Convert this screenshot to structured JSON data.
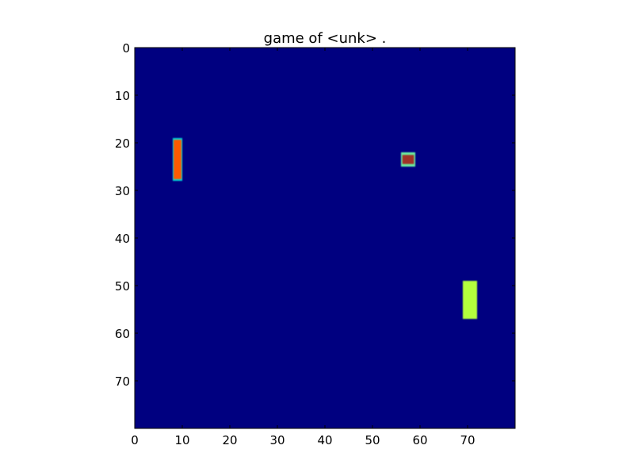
{
  "title": "game of <unk> .",
  "frame": {
    "rows": 80,
    "cols": 80,
    "background_color": "#000080"
  },
  "axes": {
    "x_ticks": [
      0,
      10,
      20,
      30,
      40,
      50,
      60,
      70
    ],
    "y_ticks": [
      0,
      10,
      20,
      30,
      40,
      50,
      60,
      70
    ],
    "x_tick_labels": [
      "0",
      "10",
      "20",
      "30",
      "40",
      "50",
      "60",
      "70"
    ],
    "y_tick_labels": [
      "0",
      "10",
      "20",
      "30",
      "40",
      "50",
      "60",
      "70"
    ]
  },
  "objects": [
    {
      "name": "left-paddle",
      "col_start": 8,
      "col_end": 10,
      "row_start": 19,
      "row_end": 28,
      "fill": "#ff5a00",
      "edge": "#00d8d8"
    },
    {
      "name": "ball",
      "col_start": 56,
      "col_end": 59,
      "row_start": 22,
      "row_end": 25,
      "fill": "#a03028",
      "edge": "#6cf0a0"
    },
    {
      "name": "right-paddle",
      "col_start": 69,
      "col_end": 72,
      "row_start": 49,
      "row_end": 57,
      "fill": "#b4ff3c",
      "edge": "#b4ff3c"
    }
  ]
}
